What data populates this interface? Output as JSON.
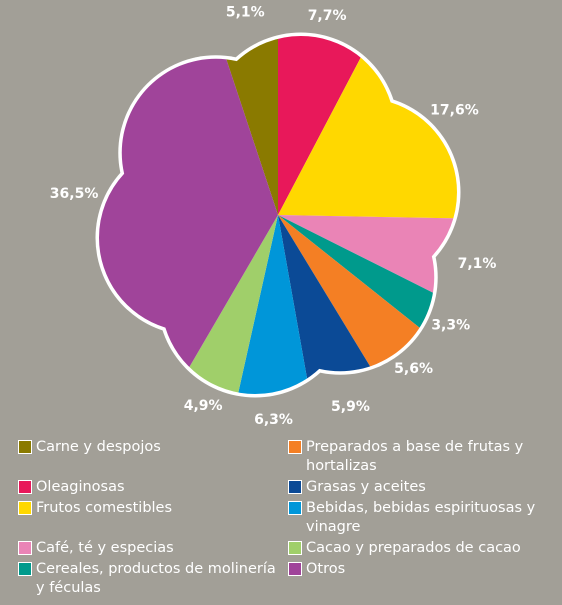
{
  "chart_data": {
    "type": "pie",
    "categories": [
      "Carne y despojos",
      "Oleaginosas",
      "Frutos comestibles",
      "Café, té y especias",
      "Cereales, productos de molinería y féculas",
      "Preparados a base de frutas y hortalizas",
      "Grasas y aceites",
      "Bebidas, bebidas espirituosas y vinagre",
      "Cacao y preparados de cacao",
      "Otros"
    ],
    "values": [
      5.1,
      7.7,
      17.6,
      7.1,
      3.3,
      5.6,
      5.9,
      6.3,
      4.9,
      36.5
    ],
    "value_labels": [
      "5,1%",
      "7,7%",
      "17,6%",
      "7,1%",
      "3,3%",
      "5,6%",
      "5,9%",
      "6,3%",
      "4,9%",
      "36,5%"
    ],
    "colors": [
      "#8a7a00",
      "#e8185a",
      "#ffd800",
      "#ea84b6",
      "#009a8c",
      "#f47f24",
      "#0b4a96",
      "#0096d9",
      "#a0cf6a",
      "#a0449a"
    ]
  }
}
